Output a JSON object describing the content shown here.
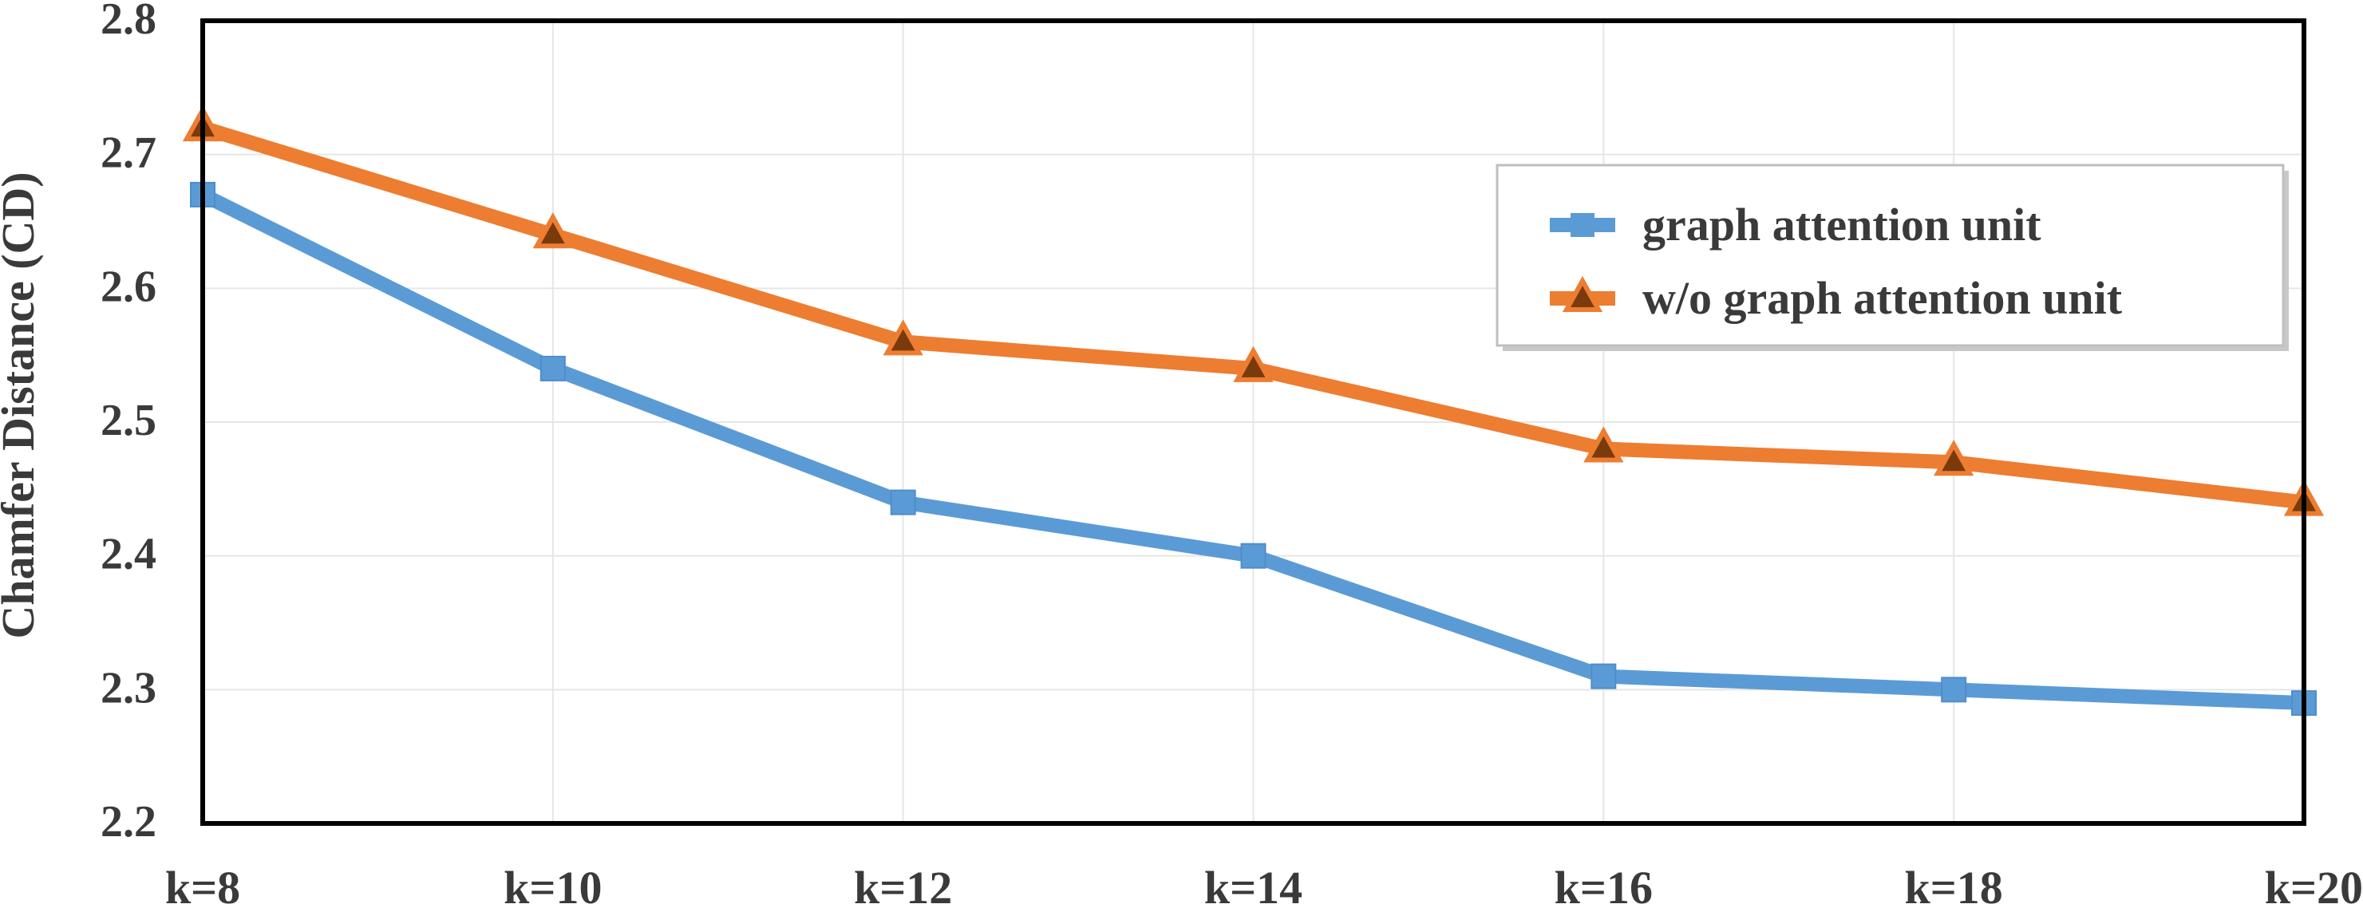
{
  "chart_data": {
    "type": "line",
    "title": "",
    "xlabel": "",
    "ylabel": "Chamfer Distance (CD)",
    "categories": [
      "k=8",
      "k=10",
      "k=12",
      "k=14",
      "k=16",
      "k=18",
      "k=20"
    ],
    "ylim": [
      2.2,
      2.8
    ],
    "yticks": [
      "2.2",
      "2.3",
      "2.4",
      "2.5",
      "2.6",
      "2.7",
      "2.8"
    ],
    "grid": true,
    "legend_position": "top-right",
    "series": [
      {
        "name": "graph attention unit",
        "marker": "square",
        "color": "#5b9bd5",
        "values": [
          2.67,
          2.54,
          2.44,
          2.4,
          2.31,
          2.3,
          2.29
        ]
      },
      {
        "name": "w/o graph attention unit",
        "marker": "triangle",
        "color": "#ed7d31",
        "values": [
          2.72,
          2.64,
          2.56,
          2.54,
          2.48,
          2.47,
          2.44
        ]
      }
    ]
  }
}
